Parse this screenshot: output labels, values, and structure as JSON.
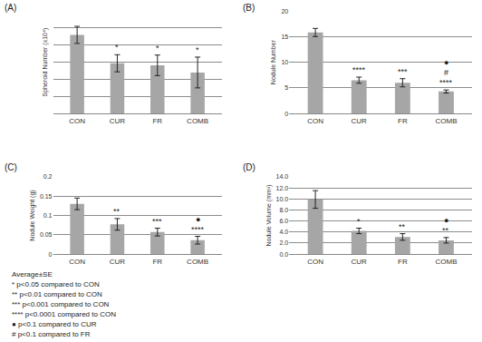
{
  "chart_data": [
    {
      "type": "bar",
      "title": "(A)",
      "y_label": "Spheroid Number (x10⁴)",
      "categories": [
        "CON",
        "CUR",
        "FR",
        "COMB"
      ],
      "values": [
        2.3,
        1.47,
        1.41,
        1.2
      ],
      "errors": [
        0.25,
        0.25,
        0.3,
        0.45
      ],
      "color": "#a6a6a6",
      "ylim": [
        0,
        3
      ],
      "yticks": [
        0,
        0.5,
        1,
        1.5,
        2,
        2.5,
        3
      ],
      "grid": true,
      "tick_labels": "x",
      "significance": [
        [],
        [
          "*"
        ],
        [
          "*"
        ],
        [
          "*"
        ]
      ]
    },
    {
      "type": "bar",
      "title": "(B)",
      "y_label": "Nodule Number",
      "categories": [
        "CON",
        "CUR",
        "FR",
        "COMB"
      ],
      "values": [
        15.8,
        6.5,
        6.0,
        4.3
      ],
      "errors": [
        0.8,
        0.6,
        0.8,
        0.3
      ],
      "color": "#a6a6a6",
      "ylim": [
        0,
        20
      ],
      "yticks": [
        0,
        5,
        10,
        15,
        20
      ],
      "grid": true,
      "significance": [
        [],
        [
          "****"
        ],
        [
          "***"
        ],
        [
          "****",
          "#",
          "●"
        ]
      ]
    },
    {
      "type": "bar",
      "title": "(C)",
      "y_label": "Nodule Weight (g)",
      "categories": [
        "CON",
        "CUR",
        "FR",
        "COMB"
      ],
      "values": [
        0.13,
        0.077,
        0.057,
        0.036
      ],
      "errors": [
        0.015,
        0.015,
        0.01,
        0.01
      ],
      "color": "#a6a6a6",
      "ylim": [
        0,
        0.2
      ],
      "yticks": [
        0,
        0.05,
        0.1,
        0.15,
        0.2
      ],
      "grid": true,
      "significance": [
        [],
        [
          "**"
        ],
        [
          "***"
        ],
        [
          "****",
          "●"
        ]
      ]
    },
    {
      "type": "bar",
      "title": "(D)",
      "y_label": "Nodule Volume (mm³)",
      "categories": [
        "CON",
        "CUR",
        "FR",
        "COMB"
      ],
      "values": [
        9.9,
        4.2,
        3.1,
        2.5
      ],
      "errors": [
        1.6,
        0.5,
        0.6,
        0.5
      ],
      "color": "#a6a6a6",
      "ylim": [
        0,
        14
      ],
      "yticks": [
        {
          "value": 0,
          "label": "0.0"
        },
        {
          "value": 2,
          "label": "2.0"
        },
        {
          "value": 4,
          "label": "4.0"
        },
        {
          "value": 6,
          "label": "6.0"
        },
        {
          "value": 8,
          "label": "8.0"
        },
        {
          "value": 10,
          "label": "10.0"
        },
        {
          "value": 12,
          "label": "12.0"
        },
        {
          "value": 14,
          "label": "14.0"
        }
      ],
      "grid": true,
      "significance": [
        [],
        [
          "*"
        ],
        [
          "**"
        ],
        [
          "**",
          "●"
        ]
      ]
    }
  ],
  "notes": [
    "Average±SE",
    "* p<0.05 compared to CON",
    "** p<0.01 compared to CON",
    "*** p<0.001 compared to CON",
    "**** p<0.0001 compared to CON",
    "● p<0.1 compared to CUR",
    "# p<0.1 compared to FR"
  ]
}
